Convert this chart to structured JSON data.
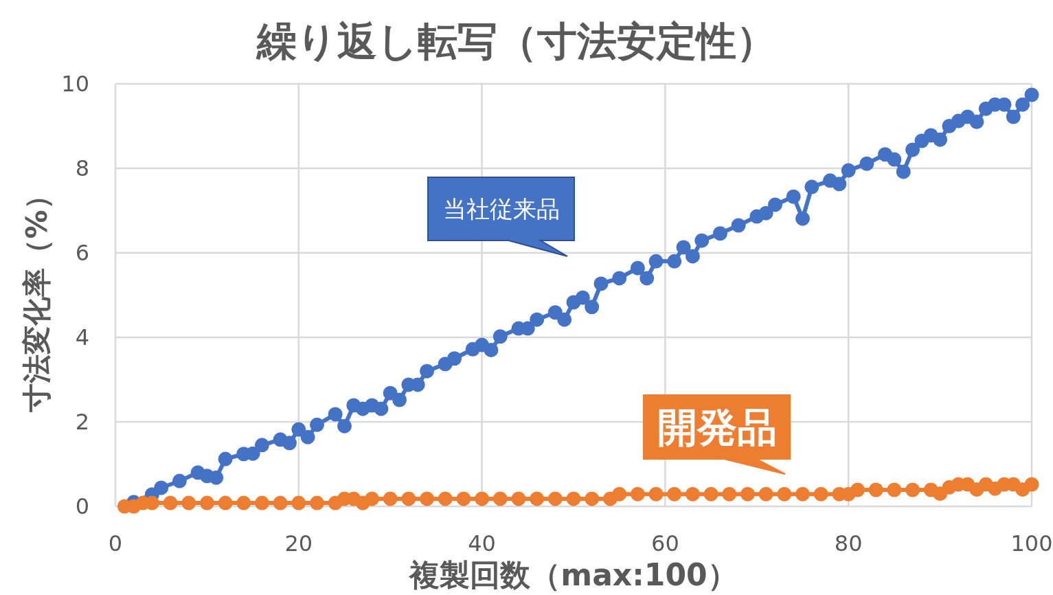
{
  "chart_data": {
    "type": "line",
    "title": "繰り返し転写（寸法安定性）",
    "xlabel": "複製回数（max:100）",
    "ylabel": "寸法変化率（%）",
    "xlim": [
      0,
      100
    ],
    "xticks": [
      0,
      20,
      40,
      60,
      80,
      100
    ],
    "ylim": [
      0,
      10
    ],
    "yticks": [
      0,
      2,
      4,
      6,
      8,
      10
    ],
    "grid": true,
    "marker": "circle",
    "line_style": "solid",
    "series": [
      {
        "name": "当社従来品",
        "color": "#4472c4",
        "x": [
          2,
          4,
          5,
          7,
          9,
          10,
          11,
          12,
          14,
          15,
          16,
          18,
          19,
          20,
          21,
          22,
          24,
          25,
          26,
          27,
          28,
          29,
          30,
          31,
          32,
          33,
          34,
          36,
          37,
          39,
          40,
          41,
          42,
          44,
          45,
          46,
          48,
          49,
          50,
          51,
          52,
          53,
          55,
          57,
          58,
          59,
          61,
          62,
          63,
          64,
          66,
          68,
          70,
          71,
          72,
          74,
          75,
          76,
          78,
          79,
          80,
          82,
          84,
          85,
          86,
          87,
          88,
          89,
          90,
          91,
          92,
          93,
          94,
          95,
          96,
          97,
          98,
          99,
          100
        ],
        "values": [
          0.1,
          0.28,
          0.44,
          0.6,
          0.8,
          0.72,
          0.68,
          1.12,
          1.24,
          1.25,
          1.45,
          1.58,
          1.5,
          1.82,
          1.64,
          1.93,
          2.18,
          1.9,
          2.39,
          2.31,
          2.39,
          2.31,
          2.68,
          2.52,
          2.88,
          2.88,
          3.2,
          3.37,
          3.5,
          3.72,
          3.82,
          3.7,
          4.02,
          4.21,
          4.21,
          4.42,
          4.59,
          4.42,
          4.83,
          4.94,
          4.72,
          5.27,
          5.4,
          5.64,
          5.4,
          5.8,
          5.8,
          6.13,
          5.92,
          6.29,
          6.46,
          6.65,
          6.86,
          6.94,
          7.14,
          7.33,
          6.81,
          7.56,
          7.71,
          7.63,
          7.95,
          8.11,
          8.33,
          8.21,
          7.92,
          8.44,
          8.65,
          8.78,
          8.68,
          9.0,
          9.12,
          9.22,
          9.1,
          9.41,
          9.51,
          9.51,
          9.22,
          9.51,
          9.74
        ]
      },
      {
        "name": "開発品",
        "color": "#ed7d31",
        "x": [
          1,
          2,
          3,
          4,
          6,
          8,
          10,
          12,
          14,
          16,
          18,
          20,
          22,
          24,
          25,
          26,
          27,
          28,
          30,
          32,
          34,
          36,
          38,
          40,
          42,
          44,
          46,
          48,
          50,
          52,
          54,
          55,
          57,
          59,
          61,
          63,
          65,
          67,
          69,
          71,
          73,
          75,
          77,
          79,
          80,
          81,
          83,
          85,
          87,
          89,
          90,
          91,
          92,
          93,
          94,
          95,
          96,
          97,
          98,
          99,
          100
        ],
        "values": [
          0.0,
          0.0,
          0.08,
          0.08,
          0.08,
          0.08,
          0.08,
          0.08,
          0.08,
          0.08,
          0.08,
          0.08,
          0.08,
          0.08,
          0.18,
          0.18,
          0.08,
          0.18,
          0.18,
          0.18,
          0.18,
          0.18,
          0.18,
          0.18,
          0.18,
          0.18,
          0.18,
          0.18,
          0.18,
          0.18,
          0.18,
          0.29,
          0.29,
          0.29,
          0.29,
          0.29,
          0.29,
          0.29,
          0.29,
          0.29,
          0.29,
          0.29,
          0.29,
          0.29,
          0.29,
          0.39,
          0.39,
          0.39,
          0.39,
          0.39,
          0.3,
          0.45,
          0.52,
          0.52,
          0.4,
          0.52,
          0.42,
          0.52,
          0.52,
          0.4,
          0.52
        ]
      }
    ]
  }
}
